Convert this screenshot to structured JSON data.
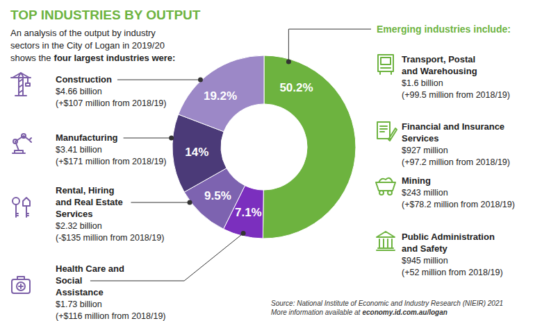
{
  "chart_data": {
    "type": "donut",
    "title": "TOP INDUSTRIES BY OUTPUT",
    "subtitle": {
      "text": "An analysis of the output by industry sectors in the City of Logan in 2019/20 shows the",
      "emphasis": "four largest industries were:"
    },
    "categories": [
      "Emerging industries include:",
      "Health Care and Social Assistance",
      "Rental, Hiring and Real Estate Services",
      "Manufacturing",
      "Construction"
    ],
    "values": [
      50.2,
      7.1,
      9.5,
      14,
      19.2
    ],
    "value_labels": [
      "50.2%",
      "7.1%",
      "9.5%",
      "14%",
      "19.2%"
    ],
    "colors": [
      "#6db33f",
      "#7b2fbe",
      "#7d63b0",
      "#4b3a78",
      "#9c88c7"
    ],
    "data_labels": true,
    "outputs": [
      null,
      "$1.73 billion",
      "$2.32 billion",
      "$3.41 billion",
      "$4.66 billion"
    ],
    "changes": [
      null,
      "(+$116 million from 2018/19)",
      "(-$135 million from 2018/19)",
      "(+$171 million from 2018/19)",
      "(+$107 million from 2018/19)"
    ],
    "emerging_industries": [
      {
        "name": "Transport, Postal and Warehousing",
        "output": "$1.6 billion",
        "change": "(+99.5 million from 2018/19)"
      },
      {
        "name": "Financial and Insurance Services",
        "output": "$927 million",
        "change": "(+97.2 million from 2018/19)"
      },
      {
        "name": "Mining",
        "output": "$243 million",
        "change": "(+$78.2 million from 2018/19)"
      },
      {
        "name": "Public Administration and Safety",
        "output": "$945 million",
        "change": "(+52 million from 2018/19)"
      }
    ],
    "source": "Source: National Institute of Economic and Industry Research (NIEIR) 2021",
    "more_info": {
      "text": "More information available at",
      "link": "economy.id.com.au/logan"
    }
  }
}
